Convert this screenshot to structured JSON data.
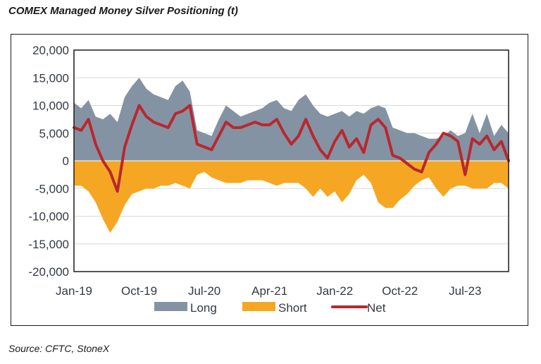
{
  "title": "COMEX Managed Money Silver Positioning (t)",
  "source": "Source: CFTC, StoneX",
  "watermark": "StoneX",
  "colors": {
    "long": "#8493a4",
    "short": "#f5a623",
    "net": "#b8282e",
    "grid": "#d9d9d9",
    "axis_text": "#333a44"
  },
  "chart_data": {
    "type": "area",
    "title": "COMEX Managed Money Silver Positioning (t)",
    "xlabel": "",
    "ylabel": "",
    "ylim": [
      -20000,
      20000
    ],
    "yticks": [
      20000,
      15000,
      10000,
      5000,
      0,
      -5000,
      -10000,
      -15000,
      -20000
    ],
    "ytick_labels": [
      "20,000",
      "15,000",
      "10,000",
      "5,000",
      "0",
      "-5,000",
      "-10,000",
      "-15,000",
      "-20,000"
    ],
    "xtick_labels": [
      "Jan-19",
      "Oct-19",
      "Jul-20",
      "Apr-21",
      "Jan-22",
      "Oct-22",
      "Jul-23"
    ],
    "xtick_month_index": [
      0,
      9,
      18,
      27,
      36,
      45,
      54
    ],
    "x_months": 61,
    "grid": true,
    "legend_position": "bottom",
    "series": [
      {
        "name": "Long",
        "kind": "area",
        "values": [
          10500,
          9500,
          11000,
          8000,
          7500,
          8500,
          7000,
          11500,
          13500,
          15000,
          13000,
          12000,
          11500,
          11000,
          13500,
          14500,
          12500,
          5500,
          5000,
          4500,
          7500,
          10000,
          9000,
          8000,
          8500,
          9000,
          9500,
          10500,
          11000,
          9500,
          9000,
          11000,
          12000,
          10000,
          8500,
          8000,
          8500,
          9000,
          8000,
          9000,
          8500,
          9500,
          10000,
          9500,
          6000,
          5500,
          5000,
          5000,
          4500,
          4000,
          4000,
          4500,
          5500,
          4500,
          5000,
          8500,
          5000,
          8500,
          4500,
          6500,
          5000
        ],
        "legend_label": "Long"
      },
      {
        "name": "Short",
        "kind": "area",
        "values": [
          -4500,
          -4500,
          -5500,
          -7500,
          -10500,
          -13000,
          -11000,
          -8000,
          -6000,
          -5500,
          -5000,
          -5000,
          -4500,
          -4500,
          -4000,
          -4500,
          -5000,
          -2500,
          -2000,
          -3000,
          -3500,
          -4000,
          -4000,
          -4000,
          -3500,
          -3500,
          -3500,
          -4000,
          -4500,
          -4000,
          -4000,
          -4000,
          -5000,
          -6500,
          -5000,
          -6500,
          -5500,
          -7500,
          -6000,
          -3500,
          -2500,
          -4000,
          -7500,
          -8500,
          -8500,
          -7000,
          -6000,
          -4500,
          -3500,
          -3000,
          -5000,
          -6500,
          -5000,
          -4500,
          -4500,
          -5000,
          -5000,
          -5000,
          -4000,
          -4000,
          -5000
        ],
        "legend_label": "Short"
      },
      {
        "name": "Net",
        "kind": "line",
        "values": [
          6000,
          5500,
          7500,
          3000,
          0,
          -2000,
          -5500,
          2500,
          6500,
          10000,
          8000,
          7000,
          6500,
          6000,
          8500,
          9000,
          10000,
          3000,
          2500,
          2000,
          4500,
          7000,
          6000,
          6000,
          6500,
          7000,
          6500,
          6500,
          7500,
          5000,
          3000,
          4500,
          7500,
          4500,
          2000,
          500,
          3500,
          5500,
          2500,
          4000,
          1500,
          6500,
          7500,
          6000,
          1000,
          500,
          -500,
          -1500,
          -2000,
          1500,
          3000,
          5000,
          4500,
          3500,
          -2500,
          4000,
          3000,
          4500,
          2000,
          3500,
          0
        ],
        "legend_label": "Net"
      }
    ]
  }
}
